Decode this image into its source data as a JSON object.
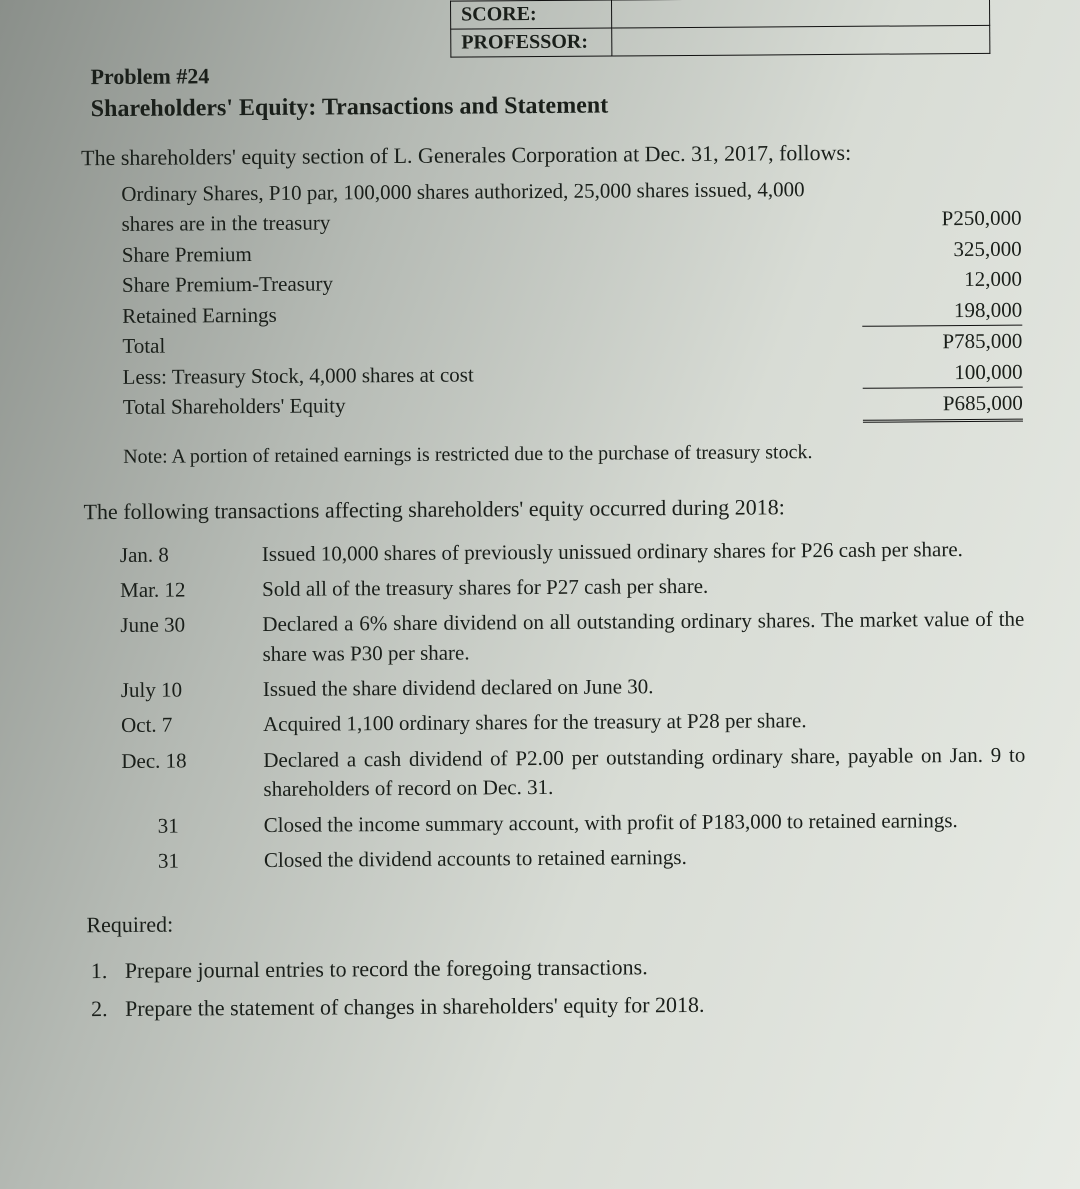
{
  "header": {
    "score_label": "SCORE:",
    "professor_label": "PROFESSOR:"
  },
  "problem_number": "Problem #24",
  "title": "Shareholders' Equity: Transactions and Statement",
  "intro": "The shareholders' equity section of L. Generales Corporation at Dec. 31, 2017, follows:",
  "equity": {
    "rows": [
      {
        "label": "Ordinary Shares, P10 par, 100,000 shares authorized, 25,000 shares issued, 4,000 shares are in the treasury",
        "value": "P250,000"
      },
      {
        "label": "Share Premium",
        "value": "325,000"
      },
      {
        "label": "Share Premium-Treasury",
        "value": "12,000"
      },
      {
        "label": "Retained Earnings",
        "value": "198,000"
      },
      {
        "label": "Total",
        "value": "P785,000"
      },
      {
        "label": "Less: Treasury Stock, 4,000 shares at cost",
        "value": "100,000"
      },
      {
        "label": "Total Shareholders' Equity",
        "value": "P685,000"
      }
    ]
  },
  "note": "Note: A portion of retained earnings is restricted due to the purchase of treasury stock.",
  "trans_intro": "The following transactions affecting shareholders' equity occurred during 2018:",
  "transactions": [
    {
      "date": "Jan. 8",
      "text": "Issued 10,000 shares of previously unissued ordinary shares for P26 cash per share."
    },
    {
      "date": "Mar. 12",
      "text": "Sold all of the treasury shares for P27 cash per share."
    },
    {
      "date": "June 30",
      "text": "Declared a 6% share dividend on all outstanding ordinary shares. The market value of the share was P30 per share."
    },
    {
      "date": "July 10",
      "text": "Issued the share dividend declared on June 30."
    },
    {
      "date": "Oct. 7",
      "text": "Acquired 1,100 ordinary shares for the treasury at P28 per share."
    },
    {
      "date": "Dec. 18",
      "text": "Declared a cash dividend of P2.00 per outstanding ordinary share, payable on Jan. 9 to shareholders of record on Dec. 31."
    },
    {
      "date": "31",
      "text": "Closed the income summary account, with profit of P183,000 to retained earnings.",
      "indent": true
    },
    {
      "date": "31",
      "text": "Closed the dividend accounts to retained earnings.",
      "indent": true
    }
  ],
  "required_label": "Required:",
  "required": [
    "Prepare journal entries to record the foregoing transactions.",
    "Prepare the statement of changes in shareholders' equity for 2018."
  ]
}
